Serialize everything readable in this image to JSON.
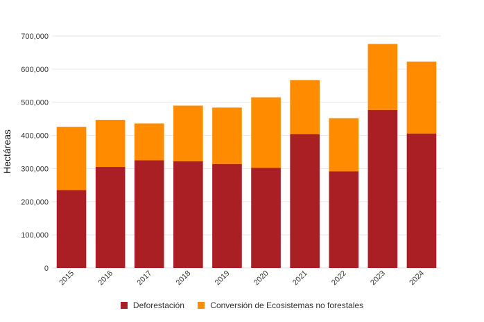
{
  "chart_data": {
    "type": "bar",
    "stacked": true,
    "categories": [
      "2015",
      "2016",
      "2017",
      "2018",
      "2019",
      "2020",
      "2021",
      "2022",
      "2023",
      "2024"
    ],
    "series": [
      {
        "name": "Deforestación",
        "color": "#a91f24",
        "values": [
          235000,
          305000,
          325000,
          322000,
          314000,
          302000,
          404000,
          292000,
          477000,
          406000
        ]
      },
      {
        "name": "Conversión de Ecosistemas no forestales",
        "color": "#ff8c00",
        "values": [
          191000,
          142000,
          111000,
          168000,
          170000,
          213000,
          163000,
          160000,
          199000,
          217000
        ]
      }
    ],
    "ylabel": "Hectáreas",
    "xlabel": "",
    "ylim": [
      0,
      700000
    ],
    "yticks": [
      "0",
      "100,000",
      "200,000",
      "300,000",
      "400,000",
      "500,000",
      "600,000",
      "700,000"
    ],
    "legend_position": "bottom"
  }
}
